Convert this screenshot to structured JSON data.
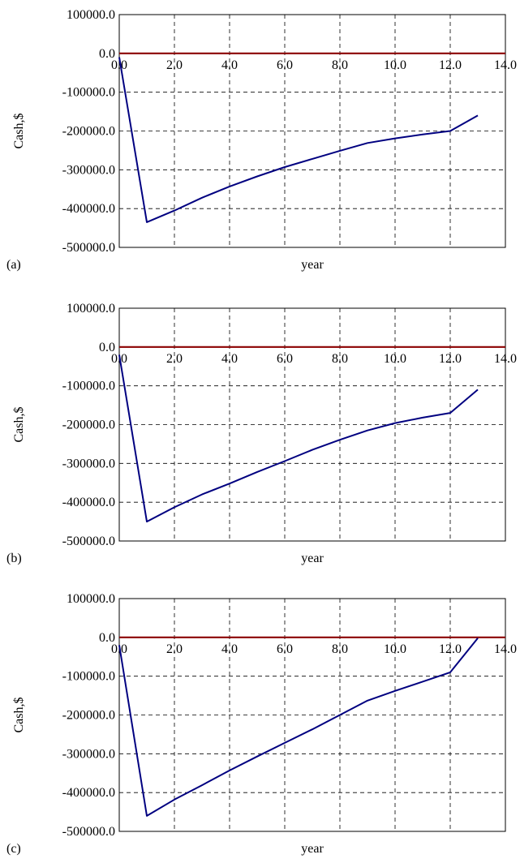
{
  "chart_data": [
    {
      "type": "line",
      "panel_label": "(a)",
      "xlabel": "year",
      "ylabel": "Cash,$",
      "xlim": [
        0,
        14
      ],
      "ylim": [
        -500000,
        100000
      ],
      "x_ticks": [
        "0.0",
        "2.0",
        "4.0",
        "6.0",
        "8.0",
        "10.0",
        "12.0",
        "14.0"
      ],
      "y_ticks": [
        "100000.0",
        "0.0",
        "-100000.0",
        "-200000.0",
        "-300000.0",
        "-400000.0",
        "-500000.0"
      ],
      "grid": true,
      "reference_line": {
        "y": 0,
        "color": "#8B0000"
      },
      "series": [
        {
          "color": "#000080",
          "points": [
            [
              0,
              -10000
            ],
            [
              1,
              -435000
            ],
            [
              2,
              -405000
            ],
            [
              3,
              -372000
            ],
            [
              4,
              -343000
            ],
            [
              5,
              -317000
            ],
            [
              6,
              -293000
            ],
            [
              7,
              -272000
            ],
            [
              8,
              -251000
            ],
            [
              9,
              -231000
            ],
            [
              10,
              -219000
            ],
            [
              11,
              -209000
            ],
            [
              12,
              -200000
            ],
            [
              13,
              -160000
            ]
          ]
        }
      ]
    },
    {
      "type": "line",
      "panel_label": "(b)",
      "xlabel": "year",
      "ylabel": "Cash,$",
      "xlim": [
        0,
        14
      ],
      "ylim": [
        -500000,
        100000
      ],
      "x_ticks": [
        "0.0",
        "2.0",
        "4.0",
        "6.0",
        "8.0",
        "10.0",
        "12.0",
        "14.0"
      ],
      "y_ticks": [
        "100000.0",
        "0.0",
        "-100000.0",
        "-200000.0",
        "-300000.0",
        "-400000.0",
        "-500000.0"
      ],
      "grid": true,
      "reference_line": {
        "y": 0,
        "color": "#8B0000"
      },
      "series": [
        {
          "color": "#000080",
          "points": [
            [
              0,
              -20000
            ],
            [
              1,
              -450000
            ],
            [
              2,
              -413000
            ],
            [
              3,
              -380000
            ],
            [
              4,
              -352000
            ],
            [
              5,
              -322000
            ],
            [
              6,
              -294000
            ],
            [
              7,
              -265000
            ],
            [
              8,
              -239000
            ],
            [
              9,
              -215000
            ],
            [
              10,
              -196000
            ],
            [
              11,
              -182000
            ],
            [
              12,
              -170000
            ],
            [
              13,
              -110000
            ]
          ]
        }
      ]
    },
    {
      "type": "line",
      "panel_label": "(c)",
      "xlabel": "year",
      "ylabel": "Cash,$",
      "xlim": [
        0,
        14
      ],
      "ylim": [
        -500000,
        100000
      ],
      "x_ticks": [
        "0.0",
        "2.0",
        "4.0",
        "6.0",
        "8.0",
        "10.0",
        "12.0",
        "14.0"
      ],
      "y_ticks": [
        "100000.0",
        "0.0",
        "-100000.0",
        "-200000.0",
        "-300000.0",
        "-400000.0",
        "-500000.0"
      ],
      "grid": true,
      "reference_line": {
        "y": 0,
        "color": "#8B0000"
      },
      "series": [
        {
          "color": "#000080",
          "points": [
            [
              0,
              -20000
            ],
            [
              1,
              -460000
            ],
            [
              2,
              -418000
            ],
            [
              3,
              -381000
            ],
            [
              4,
              -343000
            ],
            [
              5,
              -307000
            ],
            [
              6,
              -272000
            ],
            [
              7,
              -237000
            ],
            [
              8,
              -200000
            ],
            [
              9,
              -163000
            ],
            [
              10,
              -138000
            ],
            [
              11,
              -114000
            ],
            [
              12,
              -90000
            ],
            [
              13,
              -2000
            ]
          ]
        }
      ]
    }
  ]
}
